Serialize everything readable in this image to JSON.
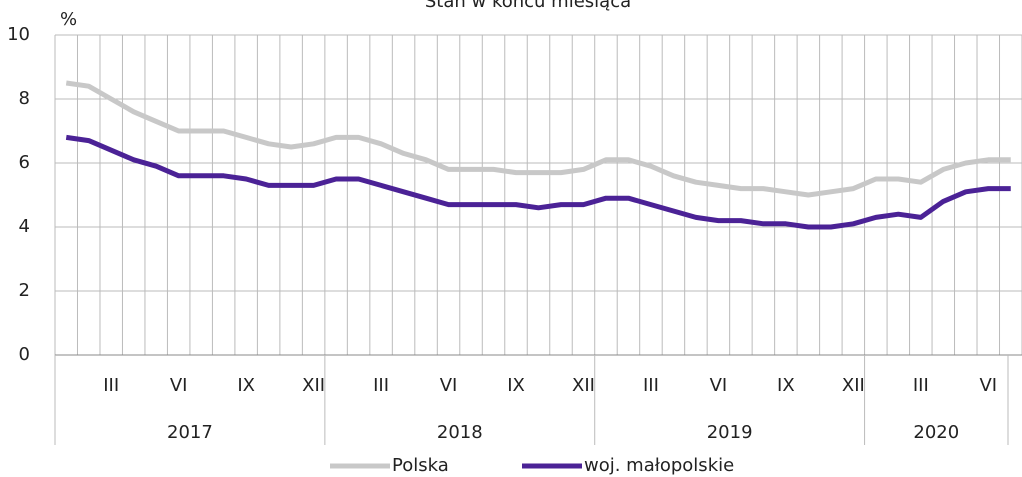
{
  "chart_data": {
    "type": "line",
    "title": "Stan w końcu miesiąca",
    "y_label": "%",
    "categories": [
      null,
      null,
      "III",
      null,
      null,
      "VI",
      null,
      null,
      "IX",
      null,
      null,
      "XII",
      null,
      null,
      "III",
      null,
      null,
      "VI",
      null,
      null,
      "IX",
      null,
      null,
      "XII",
      null,
      null,
      "III",
      null,
      null,
      "VI",
      null,
      null,
      "IX",
      null,
      null,
      "XII",
      null,
      null,
      "III",
      null,
      null,
      "VI",
      null
    ],
    "years": [
      "2017",
      "2018",
      "2019",
      "2020"
    ],
    "series": [
      {
        "name": "Polska",
        "color": "#c8c8c8",
        "values": [
          8.5,
          8.4,
          8.0,
          7.6,
          7.3,
          7.0,
          7.0,
          7.0,
          6.8,
          6.6,
          6.5,
          6.6,
          6.8,
          6.8,
          6.6,
          6.3,
          6.1,
          5.8,
          5.8,
          5.8,
          5.7,
          5.7,
          5.7,
          5.8,
          6.1,
          6.1,
          5.9,
          5.6,
          5.4,
          5.3,
          5.2,
          5.2,
          5.1,
          5.0,
          5.1,
          5.2,
          5.5,
          5.5,
          5.4,
          5.8,
          6.0,
          6.1,
          6.1
        ]
      },
      {
        "name": "woj. małopolskie",
        "color": "#4b2296",
        "values": [
          6.8,
          6.7,
          6.4,
          6.1,
          5.9,
          5.6,
          5.6,
          5.6,
          5.5,
          5.3,
          5.3,
          5.3,
          5.5,
          5.5,
          5.3,
          5.1,
          4.9,
          4.7,
          4.7,
          4.7,
          4.7,
          4.6,
          4.7,
          4.7,
          4.9,
          4.9,
          4.7,
          4.5,
          4.3,
          4.2,
          4.2,
          4.1,
          4.1,
          4.0,
          4.0,
          4.1,
          4.3,
          4.4,
          4.3,
          4.8,
          5.1,
          5.2,
          5.2
        ]
      }
    ],
    "ylim": [
      0,
      10
    ],
    "yticks": [
      0,
      2,
      4,
      6,
      8,
      10
    ],
    "grid": true
  }
}
